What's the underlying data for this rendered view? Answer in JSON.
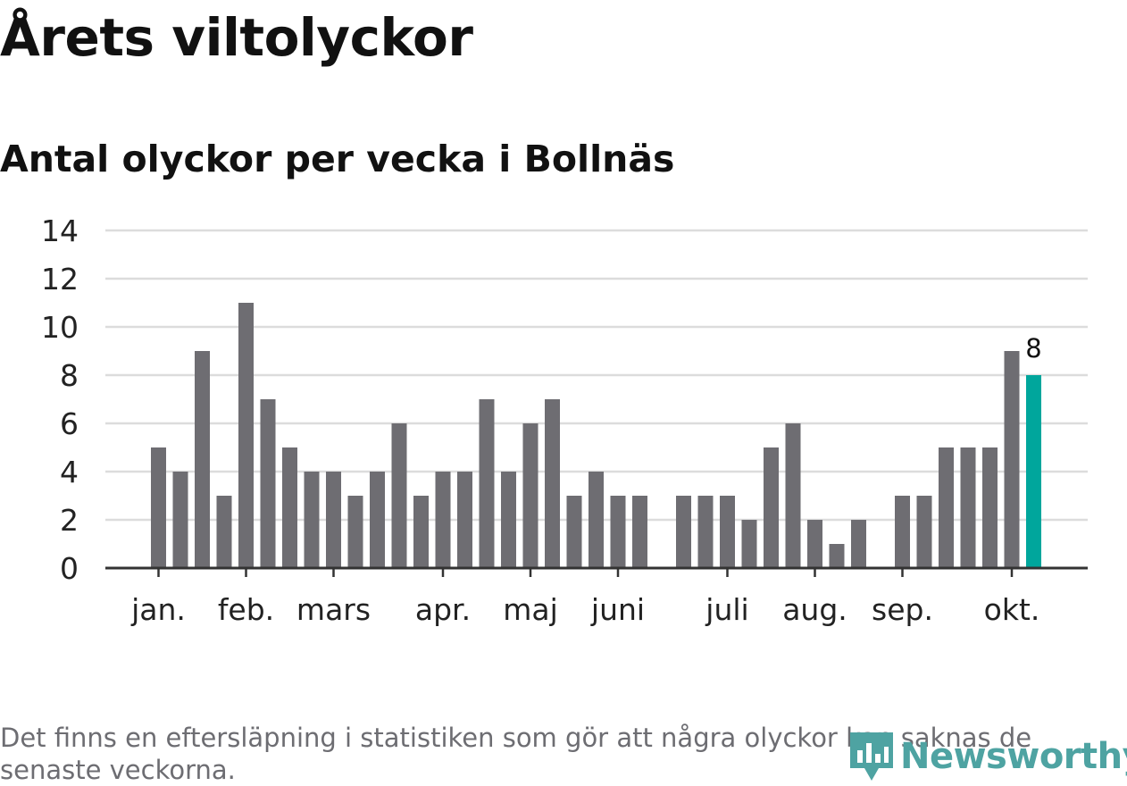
{
  "header": {
    "title": "Årets viltolyckor",
    "subtitle": "Antal olyckor per vecka i Bollnäs"
  },
  "footer": {
    "note": "Det finns en eftersläpning i statistiken som gör att några olyckor kan saknas de senaste veckorna.",
    "brand": "Newsworthy"
  },
  "colors": {
    "bar": "#6e6d72",
    "highlight": "#00a69c",
    "grid": "#dcdcdc",
    "axis": "#333333",
    "brand": "#4ea3a2"
  },
  "chart_data": {
    "type": "bar",
    "title": "Antal olyckor per vecka i Bollnäs",
    "xlabel": "",
    "ylabel": "",
    "ylim": [
      0,
      14
    ],
    "yticks": [
      "0",
      "2",
      "4",
      "6",
      "8",
      "10",
      "12",
      "14"
    ],
    "weeks": [
      1,
      2,
      3,
      4,
      5,
      6,
      7,
      8,
      9,
      10,
      11,
      12,
      13,
      14,
      15,
      16,
      17,
      18,
      19,
      20,
      21,
      22,
      23,
      24,
      25,
      26,
      27,
      28,
      29,
      30,
      31,
      32,
      33,
      34,
      35,
      36,
      37,
      38,
      39,
      40,
      41
    ],
    "values": [
      5,
      4,
      9,
      3,
      11,
      7,
      5,
      4,
      4,
      3,
      4,
      6,
      3,
      4,
      4,
      7,
      4,
      6,
      7,
      3,
      4,
      3,
      3,
      0,
      3,
      3,
      3,
      2,
      5,
      6,
      2,
      1,
      2,
      0,
      3,
      3,
      5,
      5,
      5,
      9,
      8
    ],
    "highlight_index": 40,
    "highlight_label": "8",
    "months": [
      {
        "label": "jan.",
        "week": 1
      },
      {
        "label": "feb.",
        "week": 5
      },
      {
        "label": "mars",
        "week": 9
      },
      {
        "label": "apr.",
        "week": 14
      },
      {
        "label": "maj",
        "week": 18
      },
      {
        "label": "juni",
        "week": 22
      },
      {
        "label": "juli",
        "week": 27
      },
      {
        "label": "aug.",
        "week": 31
      },
      {
        "label": "sep.",
        "week": 35
      },
      {
        "label": "okt.",
        "week": 40
      }
    ],
    "grid": true,
    "legend": "none"
  }
}
